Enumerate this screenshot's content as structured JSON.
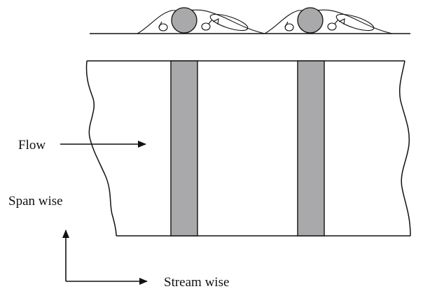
{
  "labels": {
    "flow": "Flow",
    "span_wise": "Span wise",
    "stream_wise": "Stream wise"
  },
  "colors": {
    "strip_fill": "#a9a9ab",
    "stroke": "#111111",
    "background": "#ffffff"
  },
  "elements": {
    "roughness_strip_count": 2,
    "cross_section_element_count": 2
  }
}
